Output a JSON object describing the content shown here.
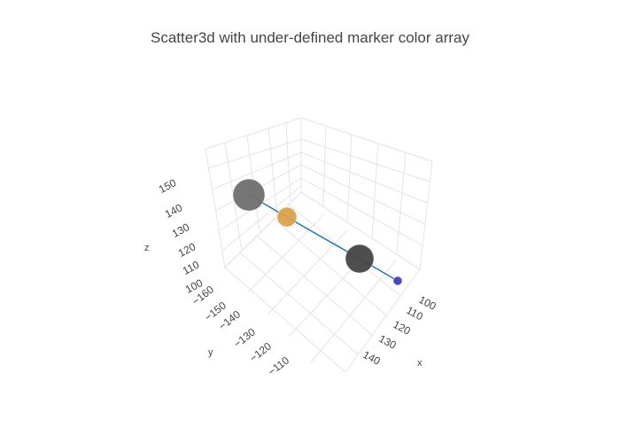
{
  "chart_data": {
    "type": "scatter3d",
    "title": "Scatter3d with under-defined marker color array",
    "axes": {
      "x": {
        "label": "x",
        "ticks": [
          "100",
          "110",
          "120",
          "130",
          "140"
        ]
      },
      "y": {
        "label": "y",
        "ticks": [
          "−160",
          "−150",
          "−140",
          "−130",
          "−120",
          "−110"
        ]
      },
      "z": {
        "label": "z",
        "ticks": [
          "100",
          "110",
          "120",
          "130",
          "140",
          "150"
        ]
      }
    },
    "grid": true,
    "mode": "lines+markers",
    "line_color": "#1f77b4",
    "points": [
      {
        "x": 100,
        "y": -110,
        "z": 100,
        "size": 10,
        "color": "#3f3fbf"
      },
      {
        "x": 120,
        "y": -130,
        "z": 120,
        "size": 32,
        "color": "#444444"
      },
      {
        "x": 130,
        "y": -140,
        "z": 130,
        "size": 22,
        "color": "#d9a24a"
      },
      {
        "x": 140,
        "y": -160,
        "z": 140,
        "size": 36,
        "color": "#6e6e6e"
      }
    ]
  }
}
